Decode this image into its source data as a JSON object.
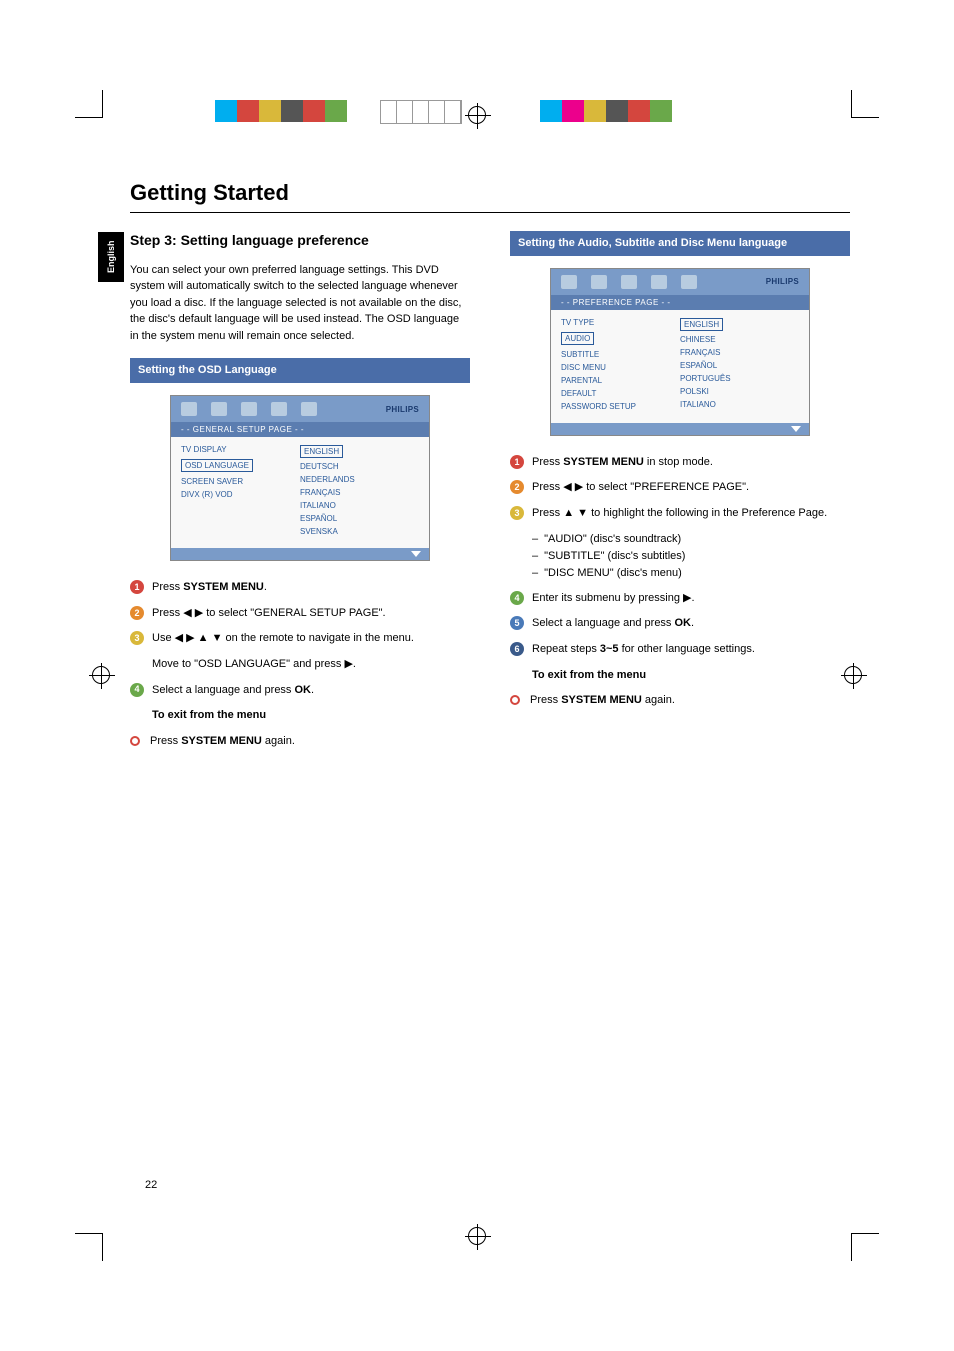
{
  "page_title": "Getting Started",
  "side_tab": "English",
  "page_number": "22",
  "colors": {
    "heading_bar": "#4a6da8",
    "osd_header": "#7a9bc8",
    "osd_crumb": "#5b7db0",
    "osd_text": "#2a5a9a",
    "badge_red": "#d4463e",
    "badge_orange": "#e58a2e",
    "badge_yellow": "#d9b83a",
    "badge_green": "#6aa84a",
    "badge_blue": "#4a7ab8",
    "badge_navy": "#3a5a8a"
  },
  "print_swatches_left": [
    "#00aeef",
    "#d4463e",
    "#d9b83a",
    "#555555",
    "#d4463e",
    "#6aa84a"
  ],
  "print_swatches_right": [
    "#00aeef",
    "#ec008c",
    "#d9b83a",
    "#555555",
    "#d4463e",
    "#6aa84a"
  ],
  "left": {
    "heading": "Step 3: Setting language preference",
    "intro": "You can select your own preferred language settings. This DVD system will automatically switch to the selected language whenever you load a disc. If the language selected is not available on the disc, the disc's default language will be used instead. The OSD language in the system menu will remain once selected.",
    "bar": "Setting the OSD Language",
    "osd": {
      "brand": "PHILIPS",
      "crumb": "- - GENERAL SETUP PAGE - -",
      "items": [
        "TV DISPLAY",
        "OSD LANGUAGE",
        "SCREEN SAVER",
        "DIVX (R) VOD"
      ],
      "selected_index": 1,
      "options": [
        "ENGLISH",
        "DEUTSCH",
        "NEDERLANDS",
        "FRANÇAIS",
        "ITALIANO",
        "ESPAÑOL",
        "SVENSKA"
      ],
      "opt_selected_index": 0
    },
    "steps": {
      "s1_a": "Press ",
      "s1_b": "SYSTEM MENU",
      "s1_c": ".",
      "s2_a": "Press ",
      "s2_b": " to select \"GENERAL SETUP PAGE\".",
      "s3_a": "Use ",
      "s3_b": " on the remote to navigate in the menu.",
      "s3_sub": "Move to \"OSD LANGUAGE\" and press ",
      "s4_a": "Select a language and press ",
      "s4_b": "OK",
      "s4_c": "."
    },
    "exit_heading": "To exit from the menu",
    "exit_a": "Press ",
    "exit_b": "SYSTEM MENU",
    "exit_c": " again."
  },
  "right": {
    "bar": "Setting the Audio, Subtitle and Disc Menu language",
    "osd": {
      "brand": "PHILIPS",
      "crumb": "- - PREFERENCE PAGE - -",
      "items": [
        "TV TYPE",
        "AUDIO",
        "SUBTITLE",
        "DISC MENU",
        "PARENTAL",
        "DEFAULT",
        "PASSWORD SETUP"
      ],
      "selected_index": 1,
      "options": [
        "ENGLISH",
        "CHINESE",
        "FRANÇAIS",
        "ESPAÑOL",
        "PORTUGUÊS",
        "POLSKI",
        "ITALIANO"
      ],
      "opt_selected_index": 0
    },
    "steps": {
      "s1_a": "Press ",
      "s1_b": "SYSTEM MENU",
      "s1_c": " in stop mode.",
      "s2_a": "Press ",
      "s2_b": " to select \"PREFERENCE PAGE\".",
      "s3_a": "Press ",
      "s3_b": " to highlight the following in the Preference Page.",
      "d1": " \"AUDIO\" (disc's soundtrack)",
      "d2": " \"SUBTITLE\" (disc's subtitles)",
      "d3": " \"DISC MENU\" (disc's menu)",
      "s4_a": "Enter its submenu by pressing ",
      "s4_b": ".",
      "s5_a": "Select a language and press ",
      "s5_b": "OK",
      "s5_c": ".",
      "s6_a": "Repeat steps ",
      "s6_b": "3~5",
      "s6_c": " for other language settings."
    },
    "exit_heading": "To exit from the menu",
    "exit_a": "Press ",
    "exit_b": "SYSTEM MENU",
    "exit_c": " again."
  }
}
